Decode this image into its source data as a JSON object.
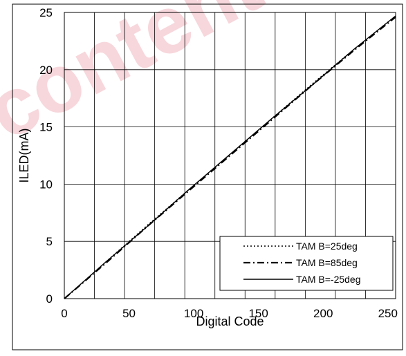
{
  "chart_data": {
    "type": "line",
    "title": "",
    "xlabel": "Digital Code",
    "ylabel": "ILED(mA)",
    "xlim": [
      0,
      256
    ],
    "ylim": [
      0,
      25
    ],
    "xticks": [
      0,
      50,
      100,
      150,
      200,
      250
    ],
    "yticks": [
      0,
      5,
      10,
      15,
      20,
      25
    ],
    "xtick_labels": [
      "0",
      "50",
      "100",
      "150",
      "200",
      "250"
    ],
    "ytick_labels": [
      "0",
      "5",
      "10",
      "15",
      "20",
      "25"
    ],
    "grid": true,
    "legend_position": "bottom-right",
    "series": [
      {
        "name": "TAM B=25deg",
        "style": "dotted",
        "x": [
          0,
          32,
          64,
          96,
          128,
          160,
          192,
          224,
          256
        ],
        "values": [
          0,
          3.2,
          6.4,
          9.5,
          12.6,
          15.7,
          18.8,
          21.8,
          24.7
        ]
      },
      {
        "name": "TAM B=85deg",
        "style": "dash-dot",
        "x": [
          0,
          32,
          64,
          96,
          128,
          160,
          192,
          224,
          256
        ],
        "values": [
          0,
          3.1,
          6.3,
          9.4,
          12.5,
          15.6,
          18.7,
          21.7,
          24.6
        ]
      },
      {
        "name": "TAM B=-25deg",
        "style": "solid",
        "x": [
          0,
          32,
          64,
          96,
          128,
          160,
          192,
          224,
          256
        ],
        "values": [
          0,
          3.2,
          6.3,
          9.5,
          12.6,
          15.7,
          18.7,
          21.8,
          24.7
        ]
      }
    ]
  },
  "watermark": {
    "color": "#f2b8c0",
    "label": "content"
  }
}
